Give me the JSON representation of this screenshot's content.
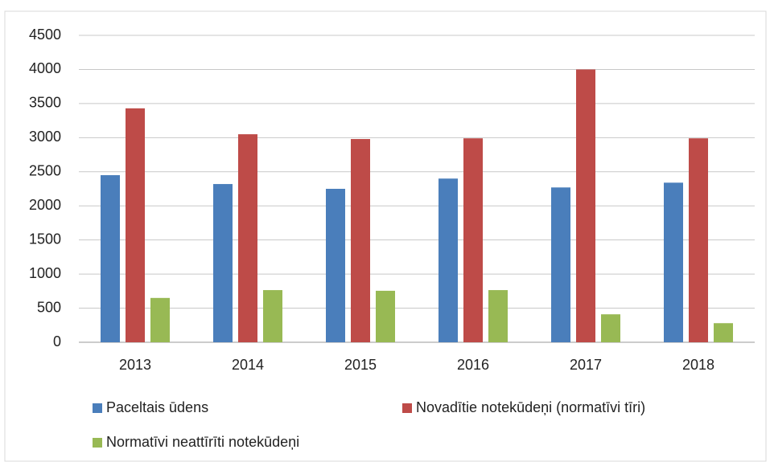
{
  "chart_data": {
    "type": "bar",
    "categories": [
      "2013",
      "2014",
      "2015",
      "2016",
      "2017",
      "2018"
    ],
    "series": [
      {
        "name": "Paceltais ūdens",
        "color": "#4a7ebb",
        "values": [
          2450,
          2320,
          2250,
          2400,
          2270,
          2340
        ]
      },
      {
        "name": "Novadītie notekūdeņi (normatīvi tīri)",
        "color": "#be4b48",
        "values": [
          3430,
          3050,
          2980,
          2990,
          4000,
          2990
        ]
      },
      {
        "name": "Normatīvi neattīrīti notekūdeņi",
        "color": "#98b954",
        "values": [
          650,
          765,
          755,
          765,
          410,
          280
        ]
      }
    ],
    "ylim": [
      0,
      4500
    ],
    "yticks": [
      0,
      500,
      1000,
      1500,
      2000,
      2500,
      3000,
      3500,
      4000,
      4500
    ],
    "grid": true,
    "legend": "bottom"
  }
}
